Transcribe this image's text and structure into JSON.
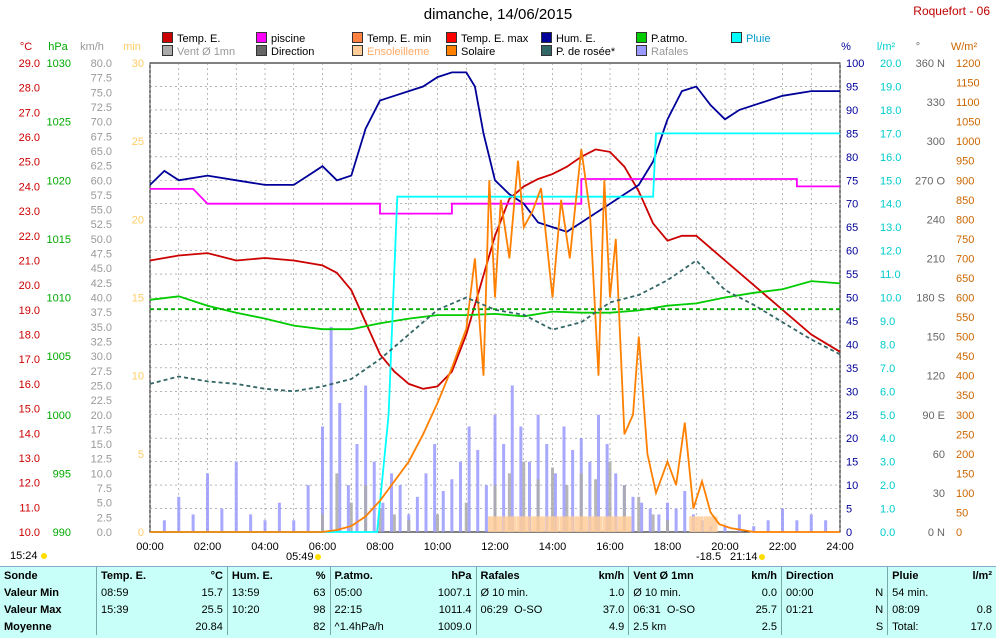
{
  "header": {
    "title": "dimanche, 14/06/2015",
    "station": "Roquefort - 06"
  },
  "legend": [
    {
      "label": "Temp. E.",
      "color": "#cc0000"
    },
    {
      "label": "piscine",
      "color": "#ff00ff"
    },
    {
      "label": "Temp. E. min",
      "color": "#ff8040"
    },
    {
      "label": "Temp. E. max",
      "color": "#ff0000"
    },
    {
      "label": "Hum. E.",
      "color": "#000099"
    },
    {
      "label": "P.atmo.",
      "color": "#00cc00"
    },
    {
      "label": "Pluie",
      "color": "#00ffff"
    },
    {
      "label": "Vent Ø 1mn",
      "color": "#aaaaaa"
    },
    {
      "label": "Direction",
      "color": "#666666"
    },
    {
      "label": "Ensoleilleme",
      "color": "#ffcc99"
    },
    {
      "label": "Solaire",
      "color": "#ff8000"
    },
    {
      "label": "P. de rosée*",
      "color": "#336666"
    },
    {
      "label": "Rafales",
      "color": "#9999ff"
    }
  ],
  "chart_data": {
    "type": "line",
    "title": "dimanche, 14/06/2015",
    "x_ticks": [
      "00:00",
      "02:00",
      "04:00",
      "06:00",
      "08:00",
      "10:00",
      "12:00",
      "14:00",
      "16:00",
      "18:00",
      "20:00",
      "22:00",
      "24:00"
    ],
    "axes": {
      "temp": {
        "unit": "°C",
        "range": [
          10,
          29
        ],
        "ticks": [
          "10.0",
          "11.0",
          "12.0",
          "13.0",
          "14.0",
          "15.0",
          "16.0",
          "17.0",
          "18.0",
          "19.0",
          "20.0",
          "21.0",
          "22.0",
          "23.0",
          "24.0",
          "25.0",
          "26.0",
          "27.0",
          "28.0",
          "29.0"
        ],
        "color": "#cc0000"
      },
      "pressure": {
        "unit": "hPa",
        "range": [
          990,
          1030
        ],
        "ticks": [
          "990",
          "995",
          "1000",
          "1005",
          "1010",
          "1015",
          "1020",
          "1025",
          "1030"
        ],
        "color": "#00aa00"
      },
      "wind": {
        "unit": "km/h",
        "range": [
          0,
          80
        ],
        "ticks": [
          "0.0",
          "2.5",
          "5.0",
          "7.5",
          "10.0",
          "12.5",
          "15.0",
          "17.5",
          "20.0",
          "22.5",
          "25.0",
          "27.5",
          "30.0",
          "32.5",
          "35.0",
          "37.5",
          "40.0",
          "42.5",
          "45.0",
          "47.5",
          "50.0",
          "52.5",
          "55.0",
          "57.5",
          "60.0",
          "62.5",
          "65.0",
          "67.5",
          "70.0",
          "72.5",
          "75.0",
          "77.5",
          "80.0"
        ],
        "color": "#999999"
      },
      "sun_min": {
        "unit": "min",
        "range": [
          0,
          30
        ],
        "ticks": [
          "0",
          "5",
          "10",
          "15",
          "20",
          "25",
          "30"
        ],
        "color": "#ffcc66"
      },
      "humidity": {
        "unit": "%",
        "range": [
          0,
          100
        ],
        "ticks": [
          "0",
          "5",
          "10",
          "15",
          "20",
          "25",
          "30",
          "35",
          "40",
          "45",
          "50",
          "55",
          "60",
          "65",
          "70",
          "75",
          "80",
          "85",
          "90",
          "95",
          "100"
        ],
        "color": "#000099"
      },
      "rain": {
        "unit": "l/m²",
        "range": [
          0,
          20
        ],
        "ticks": [
          "0.0",
          "1.0",
          "2.0",
          "3.0",
          "4.0",
          "5.0",
          "6.0",
          "7.0",
          "8.0",
          "9.0",
          "10.0",
          "11.0",
          "12.0",
          "13.0",
          "14.0",
          "15.0",
          "16.0",
          "17.0",
          "18.0",
          "19.0",
          "20.0"
        ],
        "color": "#00cccc"
      },
      "direction": {
        "unit": "°",
        "range": [
          0,
          360
        ],
        "ticks": [
          "0 N",
          "30",
          "60",
          "90 E",
          "120",
          "150",
          "180 S",
          "210",
          "240",
          "270 O",
          "300",
          "330",
          "360 N"
        ],
        "color": "#666666"
      },
      "solar": {
        "unit": "W/m²",
        "range": [
          0,
          1200
        ],
        "ticks": [
          "0",
          "50",
          "100",
          "150",
          "200",
          "250",
          "300",
          "350",
          "400",
          "450",
          "500",
          "550",
          "600",
          "650",
          "700",
          "750",
          "800",
          "850",
          "900",
          "950",
          "1000",
          "1050",
          "1100",
          "1150",
          "1200"
        ],
        "color": "#cc6600"
      }
    },
    "series": [
      {
        "name": "Temp. E.",
        "axis": "temp",
        "color": "#cc0000",
        "x": [
          0,
          1,
          2,
          3,
          4,
          5,
          6,
          6.5,
          7,
          7.5,
          8,
          8.5,
          9,
          9.5,
          10,
          10.5,
          11,
          11.5,
          12,
          12.5,
          13,
          13.5,
          14,
          14.5,
          15,
          15.5,
          16,
          16.5,
          17,
          17.5,
          18,
          18.5,
          19,
          19.5,
          20,
          20.5,
          21,
          22,
          23,
          24
        ],
        "y": [
          21.0,
          21.2,
          21.3,
          21.0,
          21.1,
          21.0,
          20.8,
          20.5,
          19.8,
          18.5,
          17.2,
          16.5,
          16.0,
          15.8,
          15.9,
          16.5,
          18.0,
          20.0,
          22.0,
          23.5,
          24.0,
          24.3,
          24.5,
          24.8,
          25.2,
          25.5,
          25.4,
          24.8,
          23.8,
          22.5,
          21.8,
          22.0,
          22.0,
          21.5,
          21.0,
          20.5,
          20.0,
          19.0,
          18.0,
          17.3
        ]
      },
      {
        "name": "piscine",
        "axis": "temp",
        "color": "#ff00ff",
        "x": [
          0,
          1.5,
          2,
          8,
          8,
          10.5,
          10.5,
          15,
          15,
          18,
          18,
          20,
          22,
          22.5,
          22.5,
          24
        ],
        "y": [
          23.9,
          23.9,
          23.3,
          23.3,
          22.9,
          22.9,
          23.3,
          23.3,
          24.3,
          24.3,
          24.3,
          24.3,
          24.3,
          24.3,
          24.0,
          24.0
        ]
      },
      {
        "name": "Hum. E.",
        "axis": "humidity",
        "color": "#000099",
        "x": [
          0,
          0.5,
          1,
          2,
          3,
          4,
          5,
          5.5,
          6,
          6.5,
          7,
          7.5,
          8,
          8.5,
          9,
          9.5,
          10,
          10.5,
          11,
          11.3,
          11.6,
          12,
          12.5,
          13,
          13.5,
          14,
          14.5,
          15,
          15.5,
          16,
          16.5,
          17,
          17.5,
          18,
          18.5,
          19,
          19.5,
          20,
          20.5,
          21,
          22,
          23,
          24
        ],
        "y": [
          74,
          77,
          75,
          76,
          75,
          74,
          74,
          76,
          78,
          75,
          76,
          86,
          92,
          93,
          94,
          95,
          97,
          98,
          98,
          95,
          85,
          75,
          72,
          70,
          66,
          65,
          64,
          66,
          68,
          70,
          72,
          74,
          79,
          88,
          94,
          95,
          91,
          88,
          90,
          91,
          93,
          94,
          94
        ]
      },
      {
        "name": "P.atmo.",
        "axis": "pressure",
        "color": "#00cc00",
        "x": [
          0,
          1,
          2,
          3,
          4,
          5,
          6,
          7,
          8,
          9,
          10,
          11,
          12,
          13,
          14,
          15,
          16,
          17,
          18,
          19,
          20,
          21,
          22,
          23,
          24
        ],
        "y": [
          1009.8,
          1010.1,
          1009.3,
          1008.7,
          1008.2,
          1007.6,
          1007.3,
          1007.3,
          1007.8,
          1008.2,
          1008.5,
          1008.5,
          1008.6,
          1008.4,
          1008.8,
          1008.7,
          1008.7,
          1008.9,
          1009.3,
          1009.5,
          1010.0,
          1010.4,
          1010.7,
          1011.4,
          1011.2
        ]
      },
      {
        "name": "P.atmo. moyenne",
        "axis": "pressure",
        "color": "#00aa00",
        "dashed": true,
        "x": [
          0,
          24
        ],
        "y": [
          1009.0,
          1009.0
        ]
      },
      {
        "name": "Pluie",
        "axis": "rain",
        "color": "#00ffff",
        "x": [
          0,
          7.9,
          8.3,
          8.6,
          9,
          10,
          11,
          12,
          13,
          14,
          15,
          16,
          17,
          17.5,
          17.6,
          18,
          24
        ],
        "y": [
          0,
          0,
          5.0,
          14.3,
          14.3,
          14.3,
          14.3,
          14.3,
          14.3,
          14.3,
          14.3,
          14.3,
          14.3,
          14.3,
          17.0,
          17.0,
          17.0
        ]
      },
      {
        "name": "Solaire",
        "axis": "solar",
        "color": "#ff8000",
        "x": [
          0,
          6,
          6.5,
          7,
          7.5,
          8,
          8.5,
          9,
          9.5,
          10,
          10.5,
          11,
          11.3,
          11.6,
          11.8,
          12,
          12.2,
          12.5,
          12.8,
          13,
          13.3,
          13.6,
          14,
          14.3,
          14.6,
          15,
          15.3,
          15.6,
          15.8,
          16,
          16.2,
          16.5,
          16.8,
          17,
          17.3,
          17.6,
          18,
          18.3,
          18.6,
          18.9,
          19.2,
          19.5,
          19.8,
          20.2,
          20.6,
          21,
          24
        ],
        "y": [
          0,
          0,
          5,
          15,
          40,
          80,
          130,
          180,
          250,
          330,
          420,
          520,
          700,
          400,
          900,
          600,
          850,
          700,
          950,
          780,
          820,
          880,
          600,
          850,
          700,
          980,
          820,
          400,
          900,
          600,
          750,
          250,
          300,
          500,
          200,
          100,
          180,
          120,
          280,
          60,
          130,
          50,
          20,
          10,
          5,
          0,
          0
        ]
      },
      {
        "name": "P. de rosée*",
        "axis": "temp",
        "color": "#336666",
        "dashed": true,
        "x": [
          0,
          1,
          2,
          3,
          4,
          5,
          6,
          7,
          8,
          9,
          10,
          11,
          12,
          13,
          14,
          15,
          16,
          17,
          18,
          19,
          20,
          21,
          22,
          23,
          24
        ],
        "y": [
          16.0,
          16.3,
          16.1,
          16.0,
          15.8,
          15.7,
          15.9,
          16.2,
          17.0,
          18.0,
          19.0,
          19.5,
          19.0,
          18.8,
          18.2,
          18.5,
          19.3,
          19.6,
          20.2,
          21.0,
          19.8,
          19.2,
          18.5,
          17.8,
          17.2
        ]
      }
    ],
    "bars": [
      {
        "name": "Rafales",
        "axis": "wind",
        "color": "#9999ff",
        "times": [
          0.5,
          1,
          1.5,
          2,
          2.5,
          3,
          3.5,
          4,
          4.5,
          5,
          5.5,
          6,
          6.3,
          6.6,
          6.9,
          7.2,
          7.5,
          7.8,
          8.1,
          8.4,
          8.7,
          9,
          9.3,
          9.6,
          9.9,
          10.2,
          10.5,
          10.8,
          11.1,
          11.4,
          11.7,
          12,
          12.3,
          12.6,
          12.9,
          13.2,
          13.5,
          13.8,
          14.1,
          14.4,
          14.7,
          15,
          15.3,
          15.6,
          15.9,
          16.2,
          16.5,
          16.8,
          17.1,
          17.4,
          17.7,
          18,
          18.3,
          18.6,
          18.9,
          19.2,
          19.5,
          20,
          20.5,
          21,
          21.5,
          22,
          22.5,
          23,
          23.5
        ],
        "values": [
          2,
          6,
          3,
          10,
          4,
          12,
          3,
          2,
          5,
          2,
          8,
          18,
          35,
          22,
          8,
          15,
          25,
          12,
          5,
          10,
          8,
          3,
          6,
          10,
          15,
          7,
          9,
          12,
          18,
          14,
          8,
          20,
          15,
          25,
          18,
          12,
          20,
          15,
          10,
          18,
          14,
          16,
          12,
          20,
          15,
          10,
          8,
          6,
          5,
          4,
          3,
          5,
          4,
          7,
          3,
          2,
          1,
          1,
          3,
          1,
          2,
          4,
          2,
          3,
          2
        ]
      },
      {
        "name": "Vent Ø 1mn",
        "axis": "wind",
        "color": "#aaaaaa",
        "times": [
          6,
          6.5,
          7,
          7.5,
          8,
          8.5,
          9,
          10,
          11,
          12,
          12.5,
          13,
          13.5,
          14,
          14.5,
          15,
          15.5,
          16,
          16.5,
          17,
          17.5,
          18
        ],
        "values": [
          3,
          10,
          5,
          8,
          4,
          3,
          2,
          3,
          5,
          8,
          10,
          12,
          9,
          11,
          8,
          10,
          9,
          12,
          8,
          6,
          3,
          2
        ]
      },
      {
        "name": "Ensoleilleme",
        "axis": "sun_min",
        "color": "#ffcc99",
        "times": [
          12,
          12.5,
          13,
          13.5,
          14,
          14.5,
          15,
          15.5,
          16,
          16.5,
          19,
          19.5
        ],
        "values": [
          1,
          1,
          1,
          1,
          1,
          1,
          1,
          1,
          1,
          1,
          1,
          1
        ]
      }
    ]
  },
  "sun": {
    "rise": "05:49",
    "set": "21:14",
    "mark_left": "15:24",
    "mark_right": "-18.5"
  },
  "summary": {
    "headers": {
      "sonde": "Sonde",
      "temp": "Temp. E.",
      "temp_u": "°C",
      "hum": "Hum. E.",
      "hum_u": "%",
      "press": "P.atmo.",
      "press_u": "hPa",
      "gust": "Rafales",
      "gust_u": "km/h",
      "wind": "Vent Ø 1mn",
      "wind_u": "km/h",
      "dir": "Direction",
      "rain": "Pluie",
      "rain_u": "l/m²"
    },
    "min": {
      "label": "Valeur Min",
      "temp_t": "08:59",
      "temp_v": "15.7",
      "hum_t": "13:59",
      "hum_v": "63",
      "press_t": "05:00",
      "press_v": "1007.1",
      "gust_t": "Ø 10 min.",
      "gust_v": "1.0",
      "wind_t": "Ø 10 min.",
      "wind_v": "0.0",
      "dir_t": "00:00",
      "dir_v": "N",
      "rain_t": "54 min.",
      "rain_v": ""
    },
    "max": {
      "label": "Valeur Max",
      "temp_t": "15:39",
      "temp_v": "25.5",
      "hum_t": "10:20",
      "hum_v": "98",
      "press_t": "22:15",
      "press_v": "1011.4",
      "gust_t": "06:29",
      "gust_dir": "O-SO",
      "gust_v": "37.0",
      "wind_t": "06:31",
      "wind_dir": "O-SO",
      "wind_v": "25.7",
      "dir_t": "01:21",
      "dir_v": "N",
      "rain_t": "08:09",
      "rain_v": "0.8"
    },
    "avg": {
      "label": "Moyenne",
      "temp_v": "20.84",
      "hum_v": "82",
      "press_t": "^1.4hPa/h",
      "press_v": "1009.0",
      "gust_v": "4.9",
      "wind_t": "2.5 km",
      "wind_v": "2.5",
      "dir_v": "S",
      "rain_t": "Total:",
      "rain_v": "17.0"
    }
  }
}
